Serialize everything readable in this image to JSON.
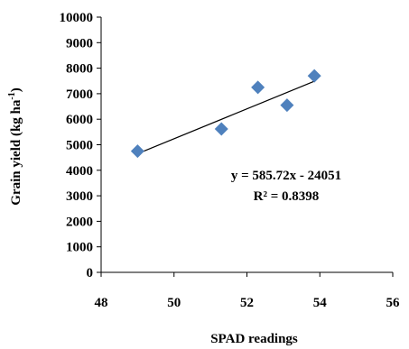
{
  "chart_data": {
    "type": "scatter",
    "xlabel": "SPAD readings",
    "ylabel": "Grain yield (kg ha",
    "ylabel_superscript": "-1",
    "ylabel_close": ")",
    "xlim": [
      48,
      56
    ],
    "ylim": [
      0,
      10000
    ],
    "x_ticks": [
      48,
      50,
      52,
      54,
      56
    ],
    "y_ticks": [
      0,
      1000,
      2000,
      3000,
      4000,
      5000,
      6000,
      7000,
      8000,
      9000,
      10000
    ],
    "grid": false,
    "legend": "none",
    "marker": "diamond",
    "marker_color": "#4F81BD",
    "line_color": "#000000",
    "series": [
      {
        "points": [
          {
            "x": 49.0,
            "y": 4750
          },
          {
            "x": 51.3,
            "y": 5620
          },
          {
            "x": 52.3,
            "y": 7250
          },
          {
            "x": 53.1,
            "y": 6550
          },
          {
            "x": 53.85,
            "y": 7700
          }
        ]
      }
    ],
    "trendline": {
      "type": "linear",
      "slope": 585.72,
      "intercept": -24051,
      "x_range": [
        49.0,
        53.85
      ],
      "equation": "y = 585.72x - 24051",
      "r_squared": "R² = 0.8398"
    }
  }
}
